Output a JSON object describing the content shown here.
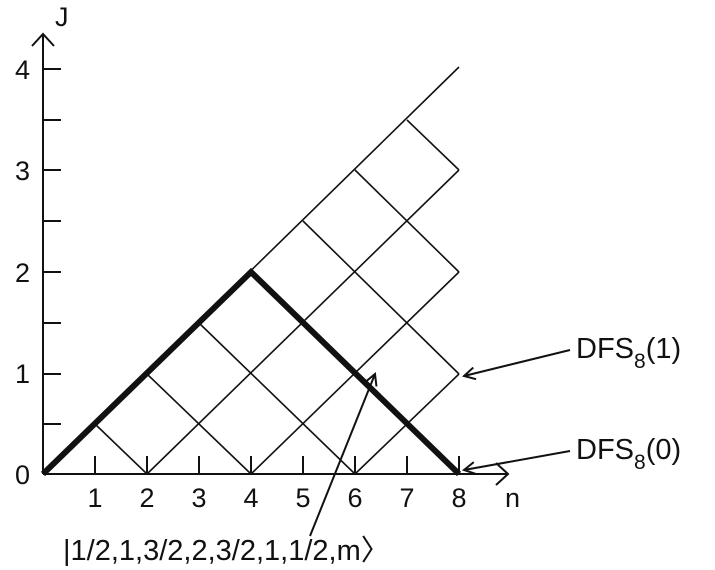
{
  "axes": {
    "x_label": "n",
    "y_label": "J",
    "x_ticks": [
      "1",
      "2",
      "3",
      "4",
      "5",
      "6",
      "7",
      "8"
    ],
    "y_ticks": [
      "0",
      "1",
      "2",
      "3",
      "4"
    ]
  },
  "annotations": {
    "state": "|1/2,1,3/2,2,3/2,1,1/2,m〉",
    "dfs1": {
      "main": "DFS",
      "sub": "8",
      "arg": "(1)"
    },
    "dfs0": {
      "main": "DFS",
      "sub": "8",
      "arg": "(0)"
    }
  },
  "colors": {
    "ink": "#111111",
    "background": "#ffffff"
  }
}
